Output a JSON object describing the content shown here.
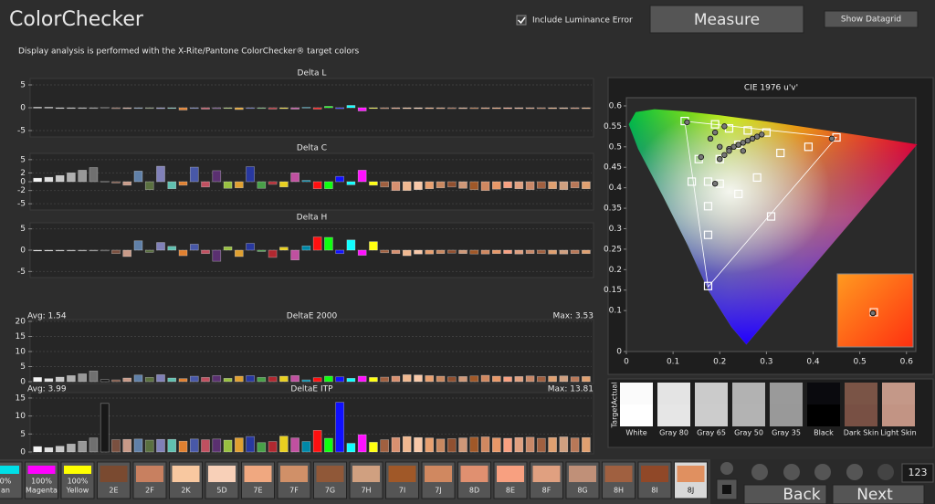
{
  "header": {
    "title": "ColorChecker",
    "subtitle": "Display analysis is performed with the X-Rite/Pantone ColorChecker® target colors",
    "checkbox_label": "Include Luminance Error",
    "measure_button": "Measure",
    "datagrid_button": "Show Datagrid"
  },
  "patch_colors": [
    "#f4f4f4",
    "#e0e0e0",
    "#c8c8c8",
    "#b0b0b0",
    "#989898",
    "#707070",
    "#181818",
    "#7a5040",
    "#c89a88",
    "#6080a8",
    "#5a7040",
    "#8080b8",
    "#60c0b0",
    "#e08030",
    "#4858a8",
    "#c05060",
    "#5a3070",
    "#98c040",
    "#e0a030",
    "#2838a0",
    "#48a048",
    "#b02830",
    "#e8d020",
    "#c050a0",
    "#0088a8",
    "#ff1010",
    "#10ff10",
    "#1010ff",
    "#10ffff",
    "#ff10ff",
    "#ffff10",
    "#a06040",
    "#d89070",
    "#f0b890",
    "#f8c8a8",
    "#e8a070",
    "#c88860",
    "#905030",
    "#d09878",
    "#a05828",
    "#d08860",
    "#e89868",
    "#f8a080",
    "#e0a080",
    "#c88868",
    "#a06040",
    "#e0a070",
    "#d0a080",
    "#b87858",
    "#e0a070"
  ],
  "charts": [
    {
      "type": "bar",
      "title": "Delta L",
      "ylim": [
        -6,
        6
      ],
      "yticks": [
        -5,
        0,
        5
      ],
      "values": [
        0.1,
        0.1,
        0,
        0,
        -0.1,
        0,
        0.1,
        -0.2,
        -0.2,
        -0.1,
        -0.1,
        -0.2,
        0,
        -0.5,
        -0.1,
        -0.3,
        -0.2,
        0,
        -0.4,
        -0.1,
        0,
        -0.3,
        -0.2,
        -0.3,
        0.1,
        -0.3,
        0.3,
        -0.2,
        0.5,
        -0.7,
        -0.1,
        -0.2,
        -0.2,
        -0.2,
        -0.2,
        -0.2,
        -0.2,
        -0.2,
        -0.2,
        -0.2,
        -0.2,
        -0.2,
        -0.2,
        -0.2,
        -0.2,
        -0.2,
        -0.2,
        -0.2,
        -0.2,
        -0.2
      ]
    },
    {
      "type": "bar",
      "title": "Delta C",
      "ylim": [
        -6,
        6
      ],
      "yticks": [
        -5,
        -2,
        0,
        2,
        5
      ],
      "values": [
        0.8,
        1.0,
        1.4,
        2.0,
        2.6,
        3.2,
        0.1,
        -0.3,
        -0.8,
        2.4,
        -1.8,
        3.5,
        -1.6,
        -0.8,
        3.3,
        -1.2,
        2.5,
        -1.5,
        -1.4,
        3.4,
        -1.5,
        -0.6,
        -1.2,
        2.0,
        0.3,
        -1.6,
        -1.6,
        1.2,
        -0.7,
        2.6,
        -0.8,
        -1.2,
        -2.0,
        -2.0,
        -1.8,
        -1.6,
        -1.4,
        -1.2,
        -1.5,
        -1.8,
        -2.0,
        -1.7,
        -1.4,
        -1.6,
        -1.8,
        -1.5,
        -1.6,
        -1.8,
        -1.4,
        -1.6
      ]
    },
    {
      "type": "bar",
      "title": "Delta H",
      "ylim": [
        -6,
        6
      ],
      "yticks": [
        -5,
        0,
        5
      ],
      "values": [
        0,
        0,
        0,
        0,
        0,
        0,
        0,
        -0.8,
        -1.5,
        2.2,
        -0.5,
        1.8,
        0.9,
        -1.3,
        1.4,
        -0.8,
        -2.6,
        0.8,
        -1.5,
        1.6,
        -0.3,
        -1.7,
        0.7,
        -2.3,
        1.0,
        3.1,
        3.0,
        -0.8,
        2.4,
        -1.2,
        2.0,
        -0.6,
        -0.8,
        -1.3,
        -0.9,
        -0.9,
        -0.8,
        -0.7,
        -0.8,
        -0.9,
        -0.9,
        -0.8,
        -0.8,
        -0.9,
        -0.8,
        -0.8,
        -0.9,
        -0.9,
        -0.8,
        -0.8
      ]
    },
    {
      "type": "bar",
      "title": "DeltaE 2000",
      "avg_label": "Avg: 1.54",
      "max_label": "Max: 3.53",
      "ylim": [
        0,
        20
      ],
      "yticks": [
        0,
        5,
        10,
        15,
        20
      ],
      "values": [
        1.4,
        1.0,
        1.5,
        2.0,
        2.6,
        3.53,
        0.7,
        0.6,
        1.2,
        2.2,
        1.4,
        2.3,
        1.2,
        1.0,
        1.8,
        1.4,
        2.0,
        1.1,
        1.8,
        2.0,
        1.4,
        1.6,
        1.8,
        2.0,
        0.6,
        1.3,
        1.8,
        1.6,
        1.1,
        1.8,
        1.4,
        1.5,
        1.8,
        2.3,
        2.2,
        2.0,
        1.8,
        1.6,
        1.7,
        1.9,
        2.1,
        1.8,
        1.6,
        1.7,
        1.9,
        1.7,
        1.8,
        1.9,
        1.6,
        1.7
      ]
    },
    {
      "type": "bar",
      "title": "DeltaE ITP",
      "avg_label": "Avg: 3.99",
      "max_label": "Max: 13.81",
      "ylim": [
        0,
        16
      ],
      "yticks": [
        0,
        5,
        10,
        15
      ],
      "values": [
        1.5,
        1.2,
        1.6,
        2.2,
        3.0,
        3.9,
        13.5,
        3.4,
        3.5,
        3.6,
        3.3,
        3.5,
        3.5,
        3.0,
        3.6,
        3.4,
        3.6,
        3.3,
        3.9,
        4.3,
        2.6,
        2.9,
        4.4,
        3.9,
        2.9,
        6.0,
        3.8,
        13.81,
        2.4,
        4.8,
        2.7,
        3.4,
        4.0,
        4.3,
        4.0,
        3.9,
        3.6,
        3.7,
        3.9,
        4.1,
        4.2,
        3.9,
        3.8,
        4.0,
        4.1,
        3.8,
        4.0,
        4.2,
        3.9,
        4.0
      ]
    }
  ],
  "cie": {
    "type": "scatter",
    "title": "CIE 1976 u'v'",
    "xlim": [
      0,
      0.62
    ],
    "ylim": [
      0,
      0.62
    ],
    "xticks": [
      0,
      0.1,
      0.2,
      0.3,
      0.4,
      0.5,
      0.6
    ],
    "yticks": [
      0,
      0.1,
      0.15,
      0.2,
      0.25,
      0.3,
      0.35,
      0.4,
      0.45,
      0.5,
      0.55,
      0.6
    ],
    "targets": {
      "u": [
        0.125,
        0.155,
        0.14,
        0.175,
        0.175,
        0.175,
        0.175,
        0.2,
        0.24,
        0.28,
        0.31,
        0.45,
        0.39,
        0.33,
        0.3,
        0.26,
        0.22,
        0.19,
        0.24,
        0.2
      ],
      "v": [
        0.563,
        0.47,
        0.415,
        0.415,
        0.355,
        0.285,
        0.16,
        0.41,
        0.385,
        0.425,
        0.33,
        0.523,
        0.5,
        0.485,
        0.535,
        0.54,
        0.545,
        0.555,
        0.505,
        0.47
      ]
    },
    "measured": {
      "u": [
        0.13,
        0.16,
        0.19,
        0.18,
        0.2,
        0.22,
        0.23,
        0.24,
        0.25,
        0.26,
        0.27,
        0.28,
        0.29,
        0.2,
        0.21,
        0.22,
        0.25,
        0.21,
        0.19,
        0.44
      ],
      "v": [
        0.56,
        0.475,
        0.41,
        0.52,
        0.5,
        0.495,
        0.5,
        0.505,
        0.51,
        0.515,
        0.52,
        0.525,
        0.53,
        0.47,
        0.48,
        0.49,
        0.49,
        0.55,
        0.535,
        0.52
      ]
    }
  },
  "swatches": {
    "row_labels": [
      "Actual",
      "Target"
    ],
    "items": [
      {
        "name": "White",
        "actual": "#fbfbfb",
        "target": "#ffffff"
      },
      {
        "name": "Gray 80",
        "actual": "#e4e4e4",
        "target": "#e6e6e6"
      },
      {
        "name": "Gray 65",
        "actual": "#cbcbcb",
        "target": "#cccccc"
      },
      {
        "name": "Gray 50",
        "actual": "#b2b2b2",
        "target": "#b3b3b3"
      },
      {
        "name": "Gray 35",
        "actual": "#9a9a9a",
        "target": "#999999"
      },
      {
        "name": "Black",
        "actual": "#0a0a0e",
        "target": "#000000"
      },
      {
        "name": "Dark Skin",
        "actual": "#7a5446",
        "target": "#785044"
      },
      {
        "name": "Light Skin",
        "actual": "#c49888",
        "target": "#c29484"
      }
    ]
  },
  "patch_bar": {
    "items": [
      {
        "lines": [
          "0%",
          "an"
        ],
        "color": "#00e0e8"
      },
      {
        "lines": [
          "100%",
          "Magenta"
        ],
        "color": "#ff00ff"
      },
      {
        "lines": [
          "100%",
          "Yellow"
        ],
        "color": "#ffff00"
      },
      {
        "lines": [
          "2E"
        ],
        "color": "#7a4a30"
      },
      {
        "lines": [
          "2F"
        ],
        "color": "#c88060"
      },
      {
        "lines": [
          "2K"
        ],
        "color": "#f8c8a0"
      },
      {
        "lines": [
          "5D"
        ],
        "color": "#f8d0b8"
      },
      {
        "lines": [
          "7E"
        ],
        "color": "#f0a880"
      },
      {
        "lines": [
          "7F"
        ],
        "color": "#d09068"
      },
      {
        "lines": [
          "7G"
        ],
        "color": "#905838"
      },
      {
        "lines": [
          "7H"
        ],
        "color": "#d0a080"
      },
      {
        "lines": [
          "7I"
        ],
        "color": "#a05828"
      },
      {
        "lines": [
          "7J"
        ],
        "color": "#d08860"
      },
      {
        "lines": [
          "8D"
        ],
        "color": "#e09070"
      },
      {
        "lines": [
          "8E"
        ],
        "color": "#f8a080"
      },
      {
        "lines": [
          "8F"
        ],
        "color": "#e0a080"
      },
      {
        "lines": [
          "8G"
        ],
        "color": "#c09078"
      },
      {
        "lines": [
          "8H"
        ],
        "color": "#a06040"
      },
      {
        "lines": [
          "8I"
        ],
        "color": "#904828"
      },
      {
        "lines": [
          "8J"
        ],
        "color": "#e09060"
      }
    ]
  },
  "controls": {
    "back": "Back",
    "next": "Next",
    "counter": "123"
  }
}
